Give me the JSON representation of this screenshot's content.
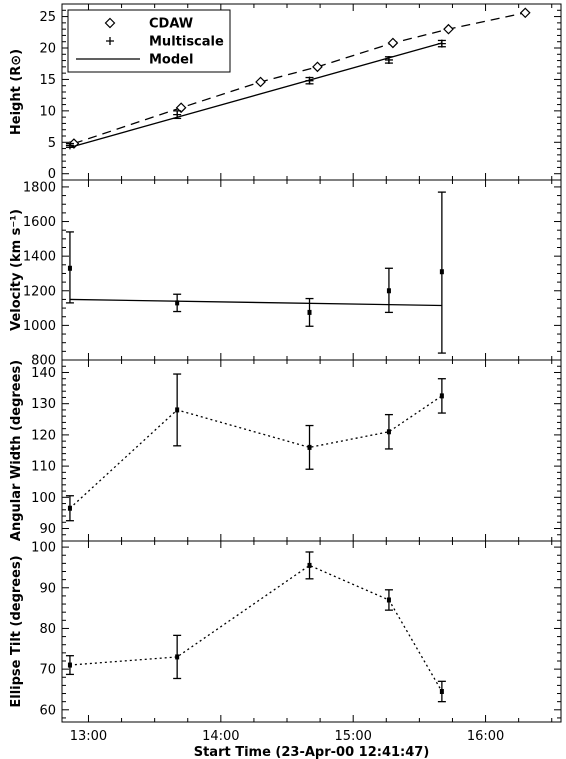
{
  "chart_data": {
    "type": "scatter",
    "x_axis": {
      "label": "Start Time (23-Apr-00 12:41:47)",
      "lim": [
        12.8,
        16.57
      ],
      "ticks": [
        13,
        14,
        15,
        16
      ],
      "tick_labels": [
        "13:00",
        "14:00",
        "15:00",
        "16:00"
      ]
    },
    "panels": [
      {
        "ylabel": "Height (R⊙)",
        "ylim": [
          -1,
          27
        ],
        "yticks": [
          0,
          5,
          10,
          15,
          20,
          25
        ],
        "legend": {
          "position": "top-left",
          "entries": [
            {
              "symbol": "diamond",
              "label": "CDAW"
            },
            {
              "symbol": "plus",
              "label": "Multiscale"
            },
            {
              "symbol": "line",
              "label": "Model"
            }
          ]
        },
        "series": [
          {
            "name": "CDAW",
            "style": "dashed",
            "marker": "diamond",
            "x": [
              12.89,
              13.7,
              14.3,
              14.73,
              15.3,
              15.72,
              16.3
            ],
            "y": [
              4.8,
              10.5,
              14.6,
              17.0,
              20.8,
              23.0,
              25.6
            ]
          },
          {
            "name": "Multiscale",
            "style": "none",
            "marker": "plus",
            "x": [
              12.86,
              13.67,
              14.67,
              15.27,
              15.67
            ],
            "y": [
              4.5,
              9.4,
              14.8,
              18.1,
              20.7
            ],
            "err": [
              0.3,
              0.6,
              0.5,
              0.5,
              0.5
            ]
          },
          {
            "name": "Model",
            "style": "solid",
            "marker": "none",
            "x": [
              12.86,
              15.67
            ],
            "y": [
              4.2,
              20.8
            ]
          }
        ]
      },
      {
        "ylabel": "Velocity (km s⁻¹)",
        "ylim": [
          800,
          1840
        ],
        "yticks": [
          800,
          1000,
          1200,
          1400,
          1600,
          1800
        ],
        "series": [
          {
            "style": "none",
            "marker": "square",
            "x": [
              12.86,
              13.67,
              14.67,
              15.27,
              15.67
            ],
            "y": [
              1330,
              1130,
              1075,
              1200,
              1310
            ],
            "err_low": [
              200,
              50,
              80,
              125,
              470
            ],
            "err_high": [
              210,
              50,
              80,
              130,
              460
            ]
          },
          {
            "style": "solid",
            "marker": "none",
            "x": [
              12.86,
              15.67
            ],
            "y": [
              1150,
              1115
            ]
          }
        ]
      },
      {
        "ylabel": "Angular Width (degrees)",
        "ylim": [
          86,
          144
        ],
        "yticks": [
          90,
          100,
          110,
          120,
          130,
          140
        ],
        "series": [
          {
            "style": "dotted",
            "marker": "square",
            "x": [
              12.86,
              13.67,
              14.67,
              15.27,
              15.67
            ],
            "y": [
              96.5,
              128,
              116,
              121,
              132.5
            ],
            "err": [
              4,
              11.5,
              7,
              5.5,
              5.5
            ]
          }
        ]
      },
      {
        "ylabel": "Ellipse Tilt (degrees)",
        "ylim": [
          57,
          101.5
        ],
        "yticks": [
          60,
          70,
          80,
          90,
          100
        ],
        "series": [
          {
            "style": "dotted",
            "marker": "square",
            "x": [
              12.86,
              13.67,
              14.67,
              15.27,
              15.67
            ],
            "y": [
              71,
              73,
              95.5,
              87,
              64.5
            ],
            "err": [
              2.3,
              5.3,
              3.3,
              2.5,
              2.5
            ]
          }
        ]
      }
    ]
  }
}
